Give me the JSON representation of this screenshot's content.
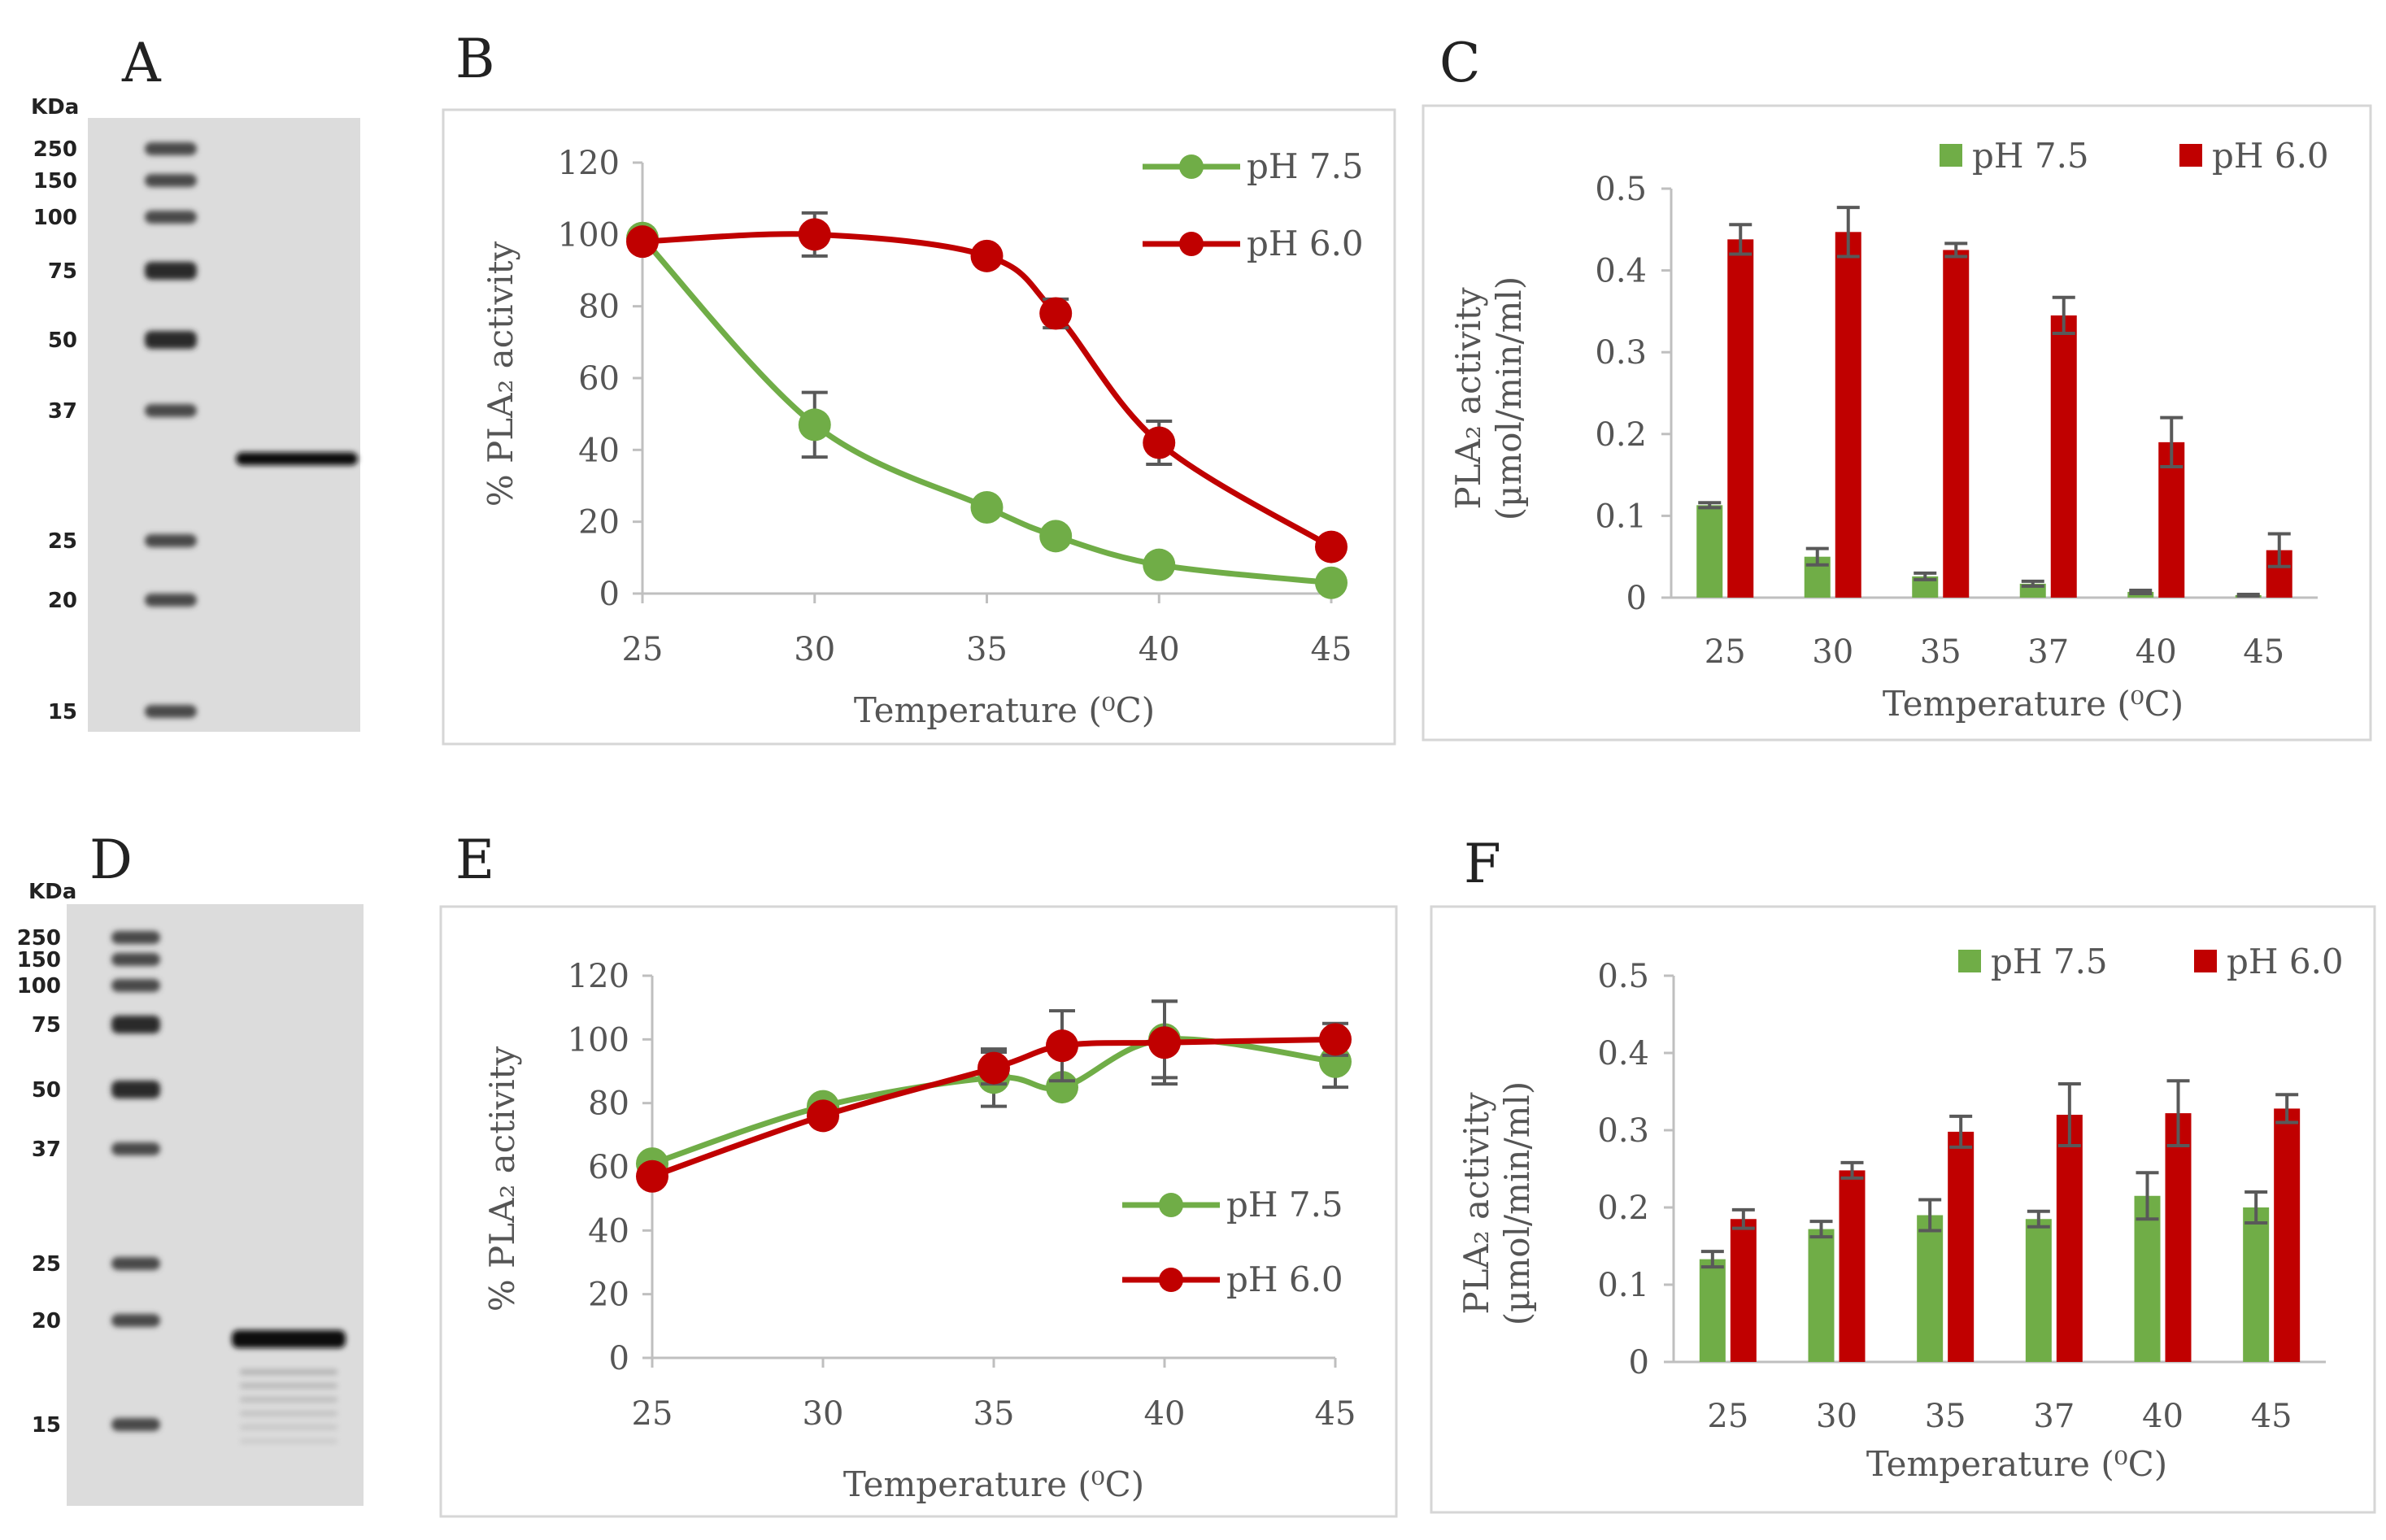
{
  "figure": {
    "colors": {
      "green": "#70ad47",
      "red": "#c00000",
      "error": "#595959"
    }
  },
  "gels": [
    {
      "panel": "A",
      "kda_label": "KDa",
      "ladder": [
        {
          "label": "250",
          "kda": 250
        },
        {
          "label": "150",
          "kda": 150
        },
        {
          "label": "100",
          "kda": 100
        },
        {
          "label": "75",
          "kda": 75
        },
        {
          "label": "50",
          "kda": 50
        },
        {
          "label": "37",
          "kda": 37
        },
        {
          "label": "25",
          "kda": 25
        },
        {
          "label": "20",
          "kda": 20
        },
        {
          "label": "15",
          "kda": 15
        }
      ],
      "sample_bands_kda": [
        32
      ]
    },
    {
      "panel": "D",
      "kda_label": "KDa",
      "ladder": [
        {
          "label": "250",
          "kda": 250
        },
        {
          "label": "150",
          "kda": 150
        },
        {
          "label": "100",
          "kda": 100
        },
        {
          "label": "75",
          "kda": 75
        },
        {
          "label": "50",
          "kda": 50
        },
        {
          "label": "37",
          "kda": 37
        },
        {
          "label": "25",
          "kda": 25
        },
        {
          "label": "20",
          "kda": 20
        },
        {
          "label": "15",
          "kda": 15
        }
      ],
      "sample_bands_kda": [
        19
      ]
    }
  ],
  "chart_data": [
    {
      "panel": "B",
      "type": "line",
      "x": [
        25,
        30,
        35,
        37,
        40,
        45
      ],
      "x_ticks": [
        "25",
        "30",
        "35",
        "40",
        "45"
      ],
      "xlim": [
        25,
        45
      ],
      "y_ticks": [
        "0",
        "20",
        "40",
        "60",
        "80",
        "100",
        "120"
      ],
      "ylim": [
        0,
        120
      ],
      "xlabel": "Temperature (⁰C)",
      "ylabel": "% PLA₂ activity",
      "legend_position": "top-right",
      "series": [
        {
          "name": "pH 7.5",
          "color": "green",
          "values": [
            99,
            47,
            24,
            16,
            8,
            3
          ],
          "errors": [
            0,
            9,
            0,
            0,
            0,
            0
          ]
        },
        {
          "name": "pH 6.0",
          "color": "red",
          "values": [
            98,
            100,
            94,
            78,
            42,
            13
          ],
          "errors": [
            0,
            6,
            0,
            4,
            6,
            0
          ]
        }
      ]
    },
    {
      "panel": "C",
      "type": "bar",
      "categories": [
        "25",
        "30",
        "35",
        "37",
        "40",
        "45"
      ],
      "y_ticks": [
        "0",
        "0.1",
        "0.2",
        "0.3",
        "0.4",
        "0.5"
      ],
      "ylim": [
        0,
        0.5
      ],
      "xlabel": "Temperature (⁰C)",
      "ylabel_line1": "PLA₂ activity",
      "ylabel_line2": "(µmol/min/ml)",
      "legend_position": "top",
      "series": [
        {
          "name": "pH 7.5",
          "color": "green",
          "values": [
            0.113,
            0.05,
            0.026,
            0.017,
            0.007,
            0.003
          ],
          "errors": [
            0.003,
            0.01,
            0.004,
            0.003,
            0.002,
            0.001
          ]
        },
        {
          "name": "pH 6.0",
          "color": "red",
          "values": [
            0.438,
            0.447,
            0.425,
            0.345,
            0.19,
            0.058
          ],
          "errors": [
            0.018,
            0.03,
            0.008,
            0.022,
            0.03,
            0.02
          ]
        }
      ]
    },
    {
      "panel": "E",
      "type": "line",
      "x": [
        25,
        30,
        35,
        37,
        40,
        45
      ],
      "x_ticks": [
        "25",
        "30",
        "35",
        "40",
        "45"
      ],
      "xlim": [
        25,
        45
      ],
      "y_ticks": [
        "0",
        "20",
        "40",
        "60",
        "80",
        "100",
        "120"
      ],
      "ylim": [
        0,
        120
      ],
      "xlabel": "Temperature (⁰C)",
      "ylabel": "% PLA₂ activity",
      "legend_position": "bottom-right",
      "series": [
        {
          "name": "pH 7.5",
          "color": "green",
          "values": [
            61,
            79,
            88,
            85,
            100,
            93
          ],
          "errors": [
            0,
            0,
            9,
            0,
            12,
            8
          ]
        },
        {
          "name": "pH 6.0",
          "color": "red",
          "values": [
            57,
            76,
            91,
            98,
            99,
            100
          ],
          "errors": [
            0,
            0,
            5,
            11,
            13,
            5
          ]
        }
      ]
    },
    {
      "panel": "F",
      "type": "bar",
      "categories": [
        "25",
        "30",
        "35",
        "37",
        "40",
        "45"
      ],
      "y_ticks": [
        "0",
        "0.1",
        "0.2",
        "0.3",
        "0.4",
        "0.5"
      ],
      "ylim": [
        0,
        0.5
      ],
      "xlabel": "Temperature (⁰C)",
      "ylabel_line1": "PLA₂ activity",
      "ylabel_line2": "(µmol/min/ml)",
      "legend_position": "top-right",
      "series": [
        {
          "name": "pH 7.5",
          "color": "green",
          "values": [
            0.133,
            0.172,
            0.19,
            0.185,
            0.215,
            0.2
          ],
          "errors": [
            0.01,
            0.01,
            0.02,
            0.01,
            0.03,
            0.02
          ]
        },
        {
          "name": "pH 6.0",
          "color": "red",
          "values": [
            0.185,
            0.248,
            0.298,
            0.32,
            0.322,
            0.328
          ],
          "errors": [
            0.012,
            0.01,
            0.02,
            0.04,
            0.042,
            0.018
          ]
        }
      ]
    }
  ]
}
